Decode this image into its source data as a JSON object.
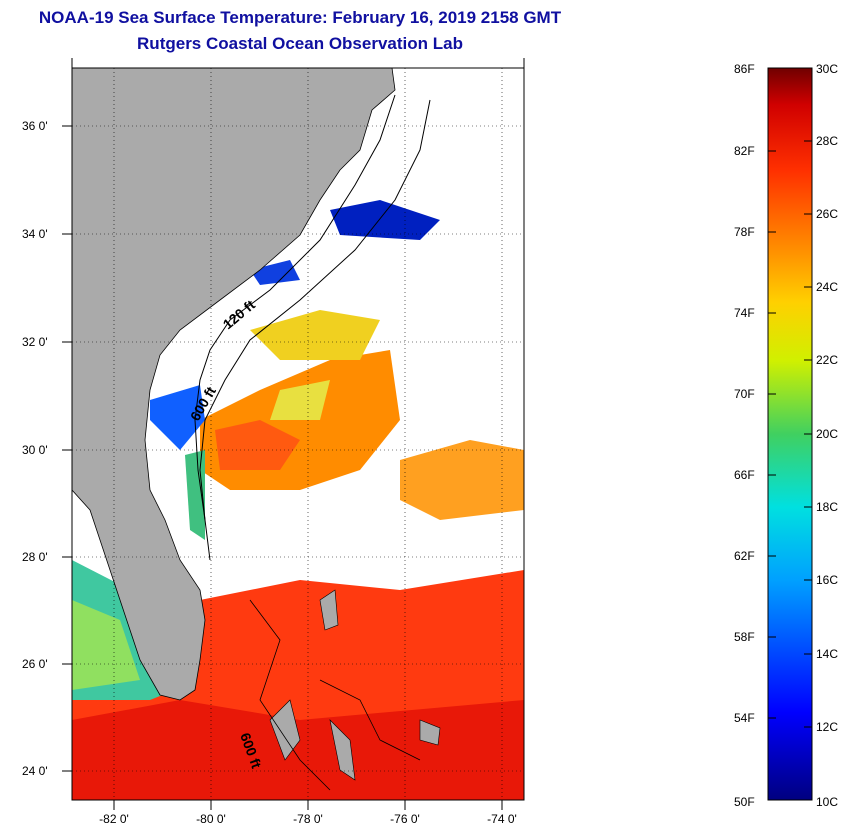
{
  "title": {
    "line1": "NOAA-19 Sea Surface Temperature:  February 16, 2019 2158 GMT",
    "line2": "Rutgers Coastal Ocean Observation Lab"
  },
  "map": {
    "lat_labels": [
      "36 0'",
      "34 0'",
      "32 0'",
      "30 0'",
      "28 0'",
      "26 0'",
      "24 0'"
    ],
    "lon_labels": [
      "-82 0'",
      "-80 0'",
      "-78 0'",
      "-76 0'",
      "-74 0'"
    ],
    "contour_labels": [
      "120 ft",
      "600 ft",
      "600 ft"
    ],
    "colors": {
      "land": "#aaaaaa",
      "cloud": "#ffffff",
      "warm": "#ff3010",
      "cool": "#1060ff"
    }
  },
  "colorbar": {
    "fahrenheit_labels": [
      "86F",
      "82F",
      "78F",
      "74F",
      "70F",
      "66F",
      "62F",
      "58F",
      "54F",
      "50F"
    ],
    "celsius_labels": [
      "30C",
      "28C",
      "26C",
      "24C",
      "22C",
      "20C",
      "18C",
      "16C",
      "14C",
      "12C",
      "10C"
    ]
  }
}
